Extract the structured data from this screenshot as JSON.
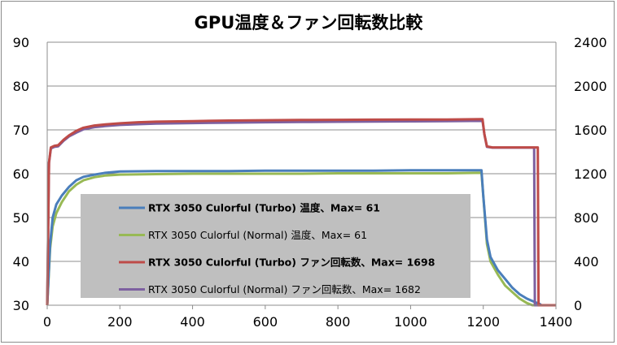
{
  "chart_data": {
    "type": "line",
    "title": "GPU温度＆ファン回転数比較",
    "xlim": [
      0,
      1400
    ],
    "x_ticks": [
      "0",
      "200",
      "400",
      "600",
      "800",
      "1000",
      "1200",
      "1400"
    ],
    "ylim_left": [
      30,
      90
    ],
    "y_ticks_left": [
      "30",
      "40",
      "50",
      "60",
      "70",
      "80",
      "90"
    ],
    "ylim_right": [
      0,
      2400
    ],
    "y_ticks_right": [
      "0",
      "400",
      "800",
      "1200",
      "1600",
      "2000",
      "2400"
    ],
    "grid": "horizontal",
    "legend_position": "center-left",
    "series": [
      {
        "name": "RTX 3050 Culorful (Turbo) 温度、Max= 61",
        "label_bold": true,
        "color": "#4a7ebb",
        "axis": "left",
        "x": [
          0,
          8,
          15,
          25,
          40,
          60,
          80,
          100,
          130,
          160,
          200,
          300,
          400,
          500,
          600,
          700,
          800,
          900,
          1000,
          1100,
          1195,
          1200,
          1210,
          1220,
          1240,
          1260,
          1280,
          1300,
          1320,
          1340,
          1355,
          1360,
          1400
        ],
        "y": [
          30,
          44,
          50,
          53,
          55,
          57,
          58.5,
          59.3,
          59.8,
          60.2,
          60.5,
          60.6,
          60.6,
          60.6,
          60.7,
          60.7,
          60.7,
          60.7,
          60.8,
          60.8,
          60.8,
          55,
          45,
          41,
          38,
          36,
          34,
          32.5,
          31.5,
          30.8,
          30.3,
          30,
          30
        ]
      },
      {
        "name": "RTX 3050 Culorful (Normal) 温度、Max= 61",
        "label_bold": false,
        "color": "#98b954",
        "axis": "left",
        "x": [
          0,
          8,
          15,
          25,
          40,
          60,
          80,
          100,
          130,
          160,
          200,
          300,
          400,
          500,
          600,
          700,
          800,
          900,
          1000,
          1100,
          1195,
          1200,
          1210,
          1220,
          1240,
          1260,
          1280,
          1300,
          1320,
          1335,
          1400
        ],
        "y": [
          30,
          43,
          48,
          51,
          53.5,
          56,
          57.5,
          58.5,
          59.2,
          59.6,
          59.8,
          59.9,
          60,
          60,
          60,
          60,
          60.1,
          60.1,
          60.1,
          60.1,
          60.2,
          55,
          44,
          40,
          37,
          34.5,
          33,
          31.5,
          30.5,
          30,
          30
        ]
      },
      {
        "name": "RTX 3050 Culorful (Turbo) ファン回転数、Max= 1698",
        "label_bold": true,
        "color": "#be4b48",
        "axis": "right",
        "x": [
          0,
          5,
          10,
          20,
          30,
          45,
          60,
          80,
          100,
          130,
          160,
          200,
          250,
          300,
          400,
          500,
          600,
          700,
          800,
          900,
          1000,
          1100,
          1198,
          1203,
          1210,
          1225,
          1250,
          1300,
          1350,
          1352,
          1360,
          1400
        ],
        "y": [
          0,
          1300,
          1440,
          1455,
          1460,
          1510,
          1550,
          1590,
          1620,
          1640,
          1650,
          1660,
          1670,
          1675,
          1680,
          1685,
          1688,
          1690,
          1692,
          1693,
          1694,
          1695,
          1698,
          1560,
          1450,
          1440,
          1440,
          1440,
          1440,
          0,
          0,
          0
        ]
      },
      {
        "name": "RTX 3050 Culorful (Normal) ファン回転数、Max= 1682",
        "label_bold": false,
        "color": "#7d60a0",
        "axis": "right",
        "x": [
          0,
          5,
          10,
          20,
          30,
          45,
          60,
          80,
          100,
          130,
          160,
          200,
          250,
          300,
          400,
          500,
          600,
          700,
          800,
          900,
          1000,
          1100,
          1198,
          1203,
          1210,
          1225,
          1250,
          1300,
          1340,
          1342,
          1350,
          1400
        ],
        "y": [
          0,
          1300,
          1430,
          1445,
          1450,
          1500,
          1540,
          1575,
          1605,
          1625,
          1635,
          1645,
          1652,
          1658,
          1662,
          1666,
          1670,
          1672,
          1674,
          1676,
          1678,
          1680,
          1682,
          1560,
          1445,
          1438,
          1438,
          1438,
          1438,
          0,
          0,
          0
        ]
      }
    ]
  }
}
